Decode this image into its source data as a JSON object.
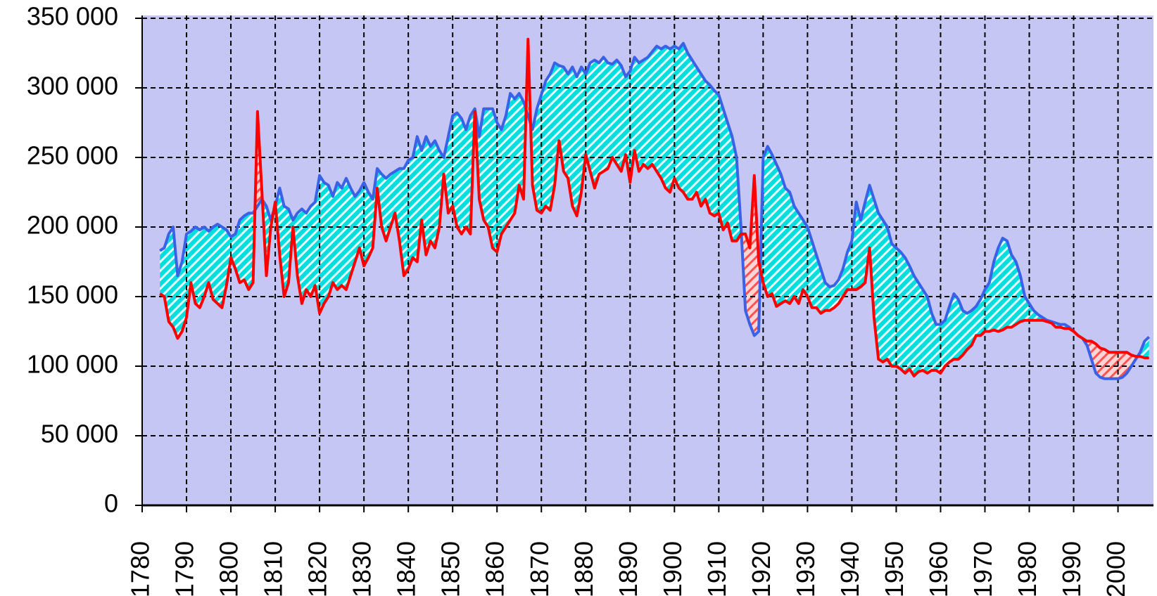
{
  "chart_data": {
    "type": "line",
    "x": [
      1784,
      1785,
      1786,
      1787,
      1788,
      1789,
      1790,
      1791,
      1792,
      1793,
      1794,
      1795,
      1796,
      1797,
      1798,
      1799,
      1800,
      1801,
      1802,
      1803,
      1804,
      1805,
      1806,
      1807,
      1808,
      1809,
      1810,
      1811,
      1812,
      1813,
      1814,
      1815,
      1816,
      1817,
      1818,
      1819,
      1820,
      1821,
      1822,
      1823,
      1824,
      1825,
      1826,
      1827,
      1828,
      1829,
      1830,
      1831,
      1832,
      1833,
      1834,
      1835,
      1836,
      1837,
      1838,
      1839,
      1840,
      1841,
      1842,
      1843,
      1844,
      1845,
      1846,
      1847,
      1848,
      1849,
      1850,
      1851,
      1852,
      1853,
      1854,
      1855,
      1856,
      1857,
      1858,
      1859,
      1860,
      1861,
      1862,
      1863,
      1864,
      1865,
      1866,
      1867,
      1868,
      1869,
      1870,
      1871,
      1872,
      1873,
      1874,
      1875,
      1876,
      1877,
      1878,
      1879,
      1880,
      1881,
      1882,
      1883,
      1884,
      1885,
      1886,
      1887,
      1888,
      1889,
      1890,
      1891,
      1892,
      1893,
      1894,
      1895,
      1896,
      1897,
      1898,
      1899,
      1900,
      1901,
      1902,
      1903,
      1904,
      1905,
      1906,
      1907,
      1908,
      1909,
      1910,
      1911,
      1912,
      1913,
      1914,
      1915,
      1916,
      1917,
      1918,
      1919,
      1920,
      1921,
      1922,
      1923,
      1924,
      1925,
      1926,
      1927,
      1928,
      1929,
      1930,
      1931,
      1932,
      1933,
      1934,
      1935,
      1936,
      1937,
      1938,
      1939,
      1940,
      1941,
      1942,
      1943,
      1944,
      1945,
      1946,
      1947,
      1948,
      1949,
      1950,
      1951,
      1952,
      1953,
      1954,
      1955,
      1956,
      1957,
      1958,
      1959,
      1960,
      1961,
      1962,
      1963,
      1964,
      1965,
      1966,
      1967,
      1968,
      1969,
      1970,
      1971,
      1972,
      1973,
      1974,
      1975,
      1976,
      1977,
      1978,
      1979,
      1980,
      1981,
      1982,
      1983,
      1984,
      1985,
      1986,
      1987,
      1988,
      1989,
      1990,
      1991,
      1992,
      1993,
      1994,
      1995,
      1996,
      1997,
      1998,
      1999,
      2000,
      2001,
      2002,
      2003,
      2004,
      2005,
      2006,
      2007
    ],
    "series": [
      {
        "color": "#3a62e6",
        "values": [
          183000,
          185000,
          195000,
          200000,
          165000,
          175000,
          195000,
          197000,
          200000,
          198000,
          200000,
          197000,
          200000,
          202000,
          200000,
          198000,
          193000,
          195000,
          205000,
          208000,
          210000,
          210000,
          215000,
          220000,
          215000,
          205000,
          215000,
          228000,
          215000,
          213000,
          205000,
          210000,
          213000,
          210000,
          215000,
          218000,
          237000,
          232000,
          230000,
          222000,
          232000,
          228000,
          235000,
          228000,
          222000,
          226000,
          232000,
          225000,
          220000,
          242000,
          238000,
          235000,
          238000,
          240000,
          242000,
          242000,
          248000,
          250000,
          265000,
          255000,
          265000,
          258000,
          262000,
          255000,
          250000,
          265000,
          280000,
          282000,
          278000,
          270000,
          280000,
          285000,
          265000,
          285000,
          285000,
          285000,
          275000,
          270000,
          280000,
          296000,
          292000,
          296000,
          290000,
          280000,
          270000,
          285000,
          295000,
          305000,
          310000,
          318000,
          316000,
          315000,
          310000,
          315000,
          308000,
          315000,
          310000,
          318000,
          320000,
          318000,
          322000,
          318000,
          317000,
          320000,
          316000,
          308000,
          312000,
          322000,
          318000,
          320000,
          322000,
          326000,
          330000,
          328000,
          330000,
          328000,
          330000,
          328000,
          332000,
          325000,
          320000,
          315000,
          310000,
          305000,
          302000,
          298000,
          295000,
          285000,
          275000,
          265000,
          250000,
          200000,
          140000,
          130000,
          122000,
          125000,
          250000,
          258000,
          252000,
          245000,
          238000,
          228000,
          225000,
          215000,
          210000,
          205000,
          200000,
          190000,
          180000,
          170000,
          160000,
          157000,
          158000,
          162000,
          170000,
          182000,
          190000,
          218000,
          205000,
          218000,
          230000,
          220000,
          210000,
          205000,
          200000,
          188000,
          185000,
          182000,
          178000,
          172000,
          165000,
          160000,
          155000,
          150000,
          138000,
          130000,
          130000,
          133000,
          143000,
          152000,
          148000,
          140000,
          138000,
          140000,
          143000,
          148000,
          155000,
          160000,
          175000,
          185000,
          192000,
          190000,
          180000,
          175000,
          165000,
          150000,
          145000,
          140000,
          137000,
          135000,
          133000,
          132000,
          131000,
          130000,
          130000,
          128000,
          125000,
          122000,
          120000,
          115000,
          105000,
          95000,
          92000,
          91000,
          91000,
          91000,
          91000,
          92000,
          95000,
          100000,
          105000,
          110000,
          118000,
          121000
        ]
      },
      {
        "color": "#ff0000",
        "values": [
          152000,
          150000,
          132000,
          128000,
          120000,
          125000,
          135000,
          160000,
          145000,
          142000,
          150000,
          160000,
          148000,
          145000,
          142000,
          158000,
          178000,
          170000,
          160000,
          162000,
          155000,
          160000,
          283000,
          225000,
          165000,
          200000,
          218000,
          180000,
          150000,
          160000,
          200000,
          165000,
          145000,
          155000,
          150000,
          158000,
          138000,
          145000,
          150000,
          160000,
          155000,
          158000,
          155000,
          165000,
          175000,
          185000,
          172000,
          178000,
          185000,
          228000,
          200000,
          190000,
          200000,
          210000,
          190000,
          165000,
          170000,
          178000,
          175000,
          205000,
          180000,
          190000,
          185000,
          200000,
          238000,
          210000,
          215000,
          200000,
          195000,
          200000,
          195000,
          283000,
          220000,
          205000,
          200000,
          185000,
          182000,
          195000,
          200000,
          205000,
          210000,
          230000,
          220000,
          335000,
          230000,
          212000,
          210000,
          215000,
          212000,
          230000,
          262000,
          240000,
          235000,
          215000,
          208000,
          225000,
          252000,
          240000,
          228000,
          238000,
          240000,
          242000,
          250000,
          245000,
          240000,
          252000,
          232000,
          255000,
          240000,
          245000,
          242000,
          245000,
          240000,
          235000,
          228000,
          225000,
          235000,
          228000,
          225000,
          220000,
          220000,
          225000,
          215000,
          220000,
          210000,
          208000,
          210000,
          198000,
          203000,
          190000,
          190000,
          195000,
          195000,
          185000,
          237000,
          175000,
          160000,
          150000,
          152000,
          143000,
          145000,
          147000,
          145000,
          150000,
          145000,
          155000,
          150000,
          142000,
          142000,
          138000,
          140000,
          140000,
          142000,
          145000,
          150000,
          155000,
          155000,
          155000,
          157000,
          160000,
          185000,
          135000,
          105000,
          103000,
          105000,
          100000,
          100000,
          98000,
          95000,
          98000,
          93000,
          96000,
          97000,
          95000,
          97000,
          97000,
          95000,
          100000,
          103000,
          105000,
          105000,
          108000,
          112000,
          115000,
          122000,
          122000,
          125000,
          125000,
          126000,
          125000,
          126000,
          128000,
          128000,
          130000,
          132000,
          133000,
          133000,
          133000,
          133000,
          133000,
          132000,
          131000,
          128000,
          128000,
          127000,
          127000,
          125000,
          122000,
          120000,
          118000,
          118000,
          116000,
          113000,
          112000,
          110000,
          110000,
          110000,
          110000,
          110000,
          108000,
          107000,
          107000,
          106000,
          106000
        ]
      }
    ],
    "xlim": [
      1780,
      2008
    ],
    "xticks": [
      1780,
      1790,
      1800,
      1810,
      1820,
      1830,
      1840,
      1850,
      1860,
      1870,
      1880,
      1890,
      1900,
      1910,
      1920,
      1930,
      1940,
      1950,
      1960,
      1970,
      1980,
      1990,
      2000
    ],
    "ylim": [
      0,
      350000
    ],
    "yticks": [
      0,
      {
        "value": 50000,
        "label": "50 000"
      },
      {
        "value": 100000,
        "label": "100 000"
      },
      {
        "value": 150000,
        "label": "150 000"
      },
      {
        "value": 200000,
        "label": "200 000"
      },
      {
        "value": 250000,
        "label": "250 000"
      },
      {
        "value": 300000,
        "label": "300 000"
      },
      {
        "value": 350000,
        "label": "350 000"
      }
    ],
    "grid": true
  }
}
